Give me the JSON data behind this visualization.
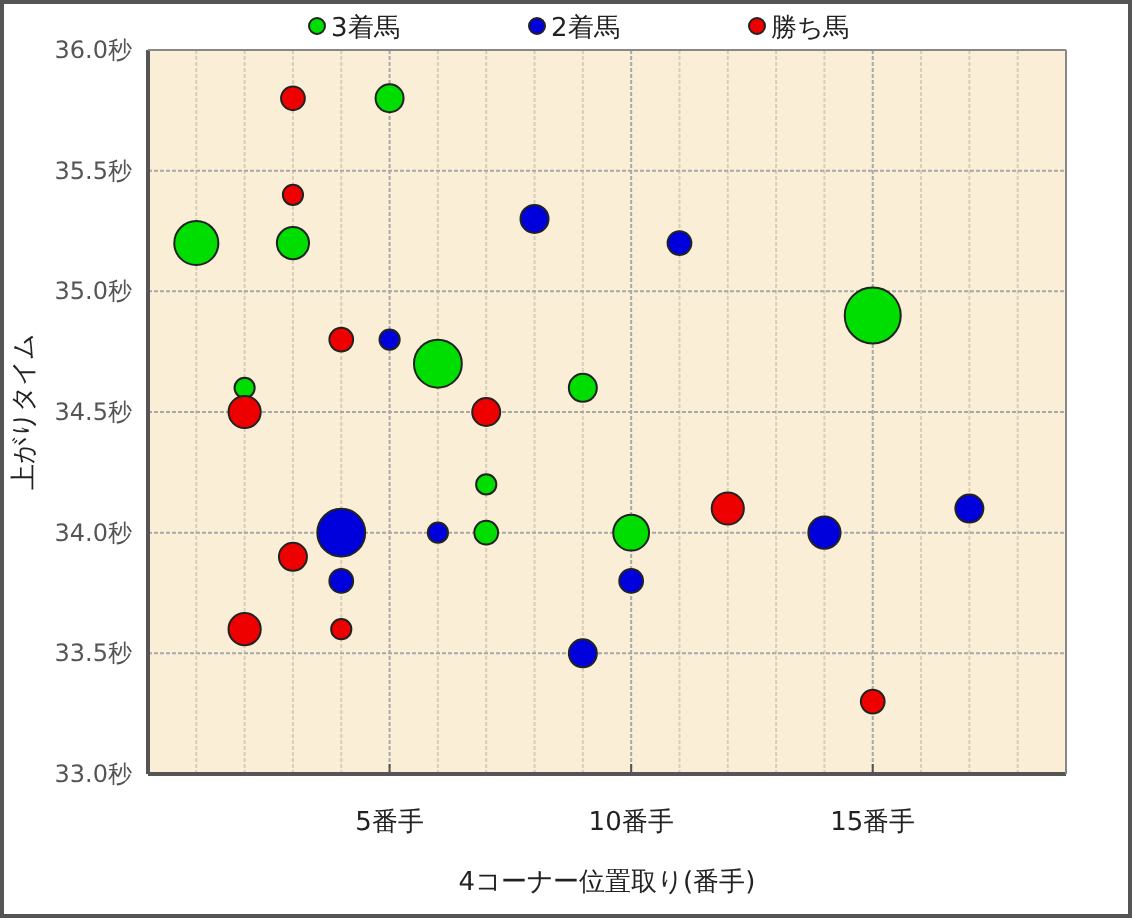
{
  "chart_data": {
    "type": "bubble",
    "xlabel": "4コーナー位置取り(番手)",
    "ylabel": "上がりタイム",
    "xlim": [
      0,
      19
    ],
    "ylim": [
      33.0,
      36.0
    ],
    "xticks": [
      {
        "value": 1,
        "label": null
      },
      {
        "value": 2,
        "label": null
      },
      {
        "value": 3,
        "label": null
      },
      {
        "value": 4,
        "label": null
      },
      {
        "value": 5,
        "label": "5番手"
      },
      {
        "value": 6,
        "label": null
      },
      {
        "value": 7,
        "label": null
      },
      {
        "value": 8,
        "label": null
      },
      {
        "value": 9,
        "label": null
      },
      {
        "value": 10,
        "label": "10番手"
      },
      {
        "value": 11,
        "label": null
      },
      {
        "value": 12,
        "label": null
      },
      {
        "value": 13,
        "label": null
      },
      {
        "value": 14,
        "label": null
      },
      {
        "value": 15,
        "label": "15番手"
      },
      {
        "value": 16,
        "label": null
      },
      {
        "value": 17,
        "label": null
      },
      {
        "value": 18,
        "label": null
      }
    ],
    "yticks": [
      {
        "value": 33.0,
        "label": "33.0秒"
      },
      {
        "value": 33.5,
        "label": "33.5秒"
      },
      {
        "value": 34.0,
        "label": "34.0秒"
      },
      {
        "value": 34.5,
        "label": "34.5秒"
      },
      {
        "value": 35.0,
        "label": "35.0秒"
      },
      {
        "value": 35.5,
        "label": "35.5秒"
      },
      {
        "value": 36.0,
        "label": "36.0秒"
      }
    ],
    "grid": true,
    "legend": "top",
    "series": [
      {
        "name": "3着馬",
        "color": "#00dd00",
        "x": [
          1,
          3,
          5,
          6,
          2,
          9,
          7,
          7,
          10,
          15
        ],
        "values": [
          35.2,
          35.2,
          35.8,
          34.7,
          34.6,
          34.6,
          34.2,
          34.0,
          34.0,
          34.9
        ],
        "sizes": [
          0.62,
          0.33,
          0.25,
          0.73,
          0.13,
          0.25,
          0.13,
          0.18,
          0.41,
          1
        ]
      },
      {
        "name": "2着馬",
        "color": "#0000dd",
        "x": [
          8,
          11,
          5,
          4,
          6,
          4,
          10,
          9,
          14,
          17
        ],
        "values": [
          35.3,
          35.2,
          34.8,
          34.0,
          34.0,
          33.8,
          33.8,
          33.5,
          34.0,
          34.1
        ],
        "sizes": [
          0.25,
          0.18,
          0.13,
          0.73,
          0.13,
          0.18,
          0.18,
          0.25,
          0.33,
          0.25
        ]
      },
      {
        "name": "勝ち馬",
        "color": "#ee0000",
        "x": [
          3,
          3,
          4,
          2,
          7,
          3,
          2,
          4,
          12,
          15
        ],
        "values": [
          35.8,
          35.4,
          34.8,
          34.5,
          34.5,
          33.9,
          33.6,
          33.6,
          34.1,
          33.3
        ],
        "sizes": [
          0.18,
          0.13,
          0.18,
          0.33,
          0.25,
          0.25,
          0.33,
          0.13,
          0.33,
          0.18
        ]
      }
    ]
  }
}
